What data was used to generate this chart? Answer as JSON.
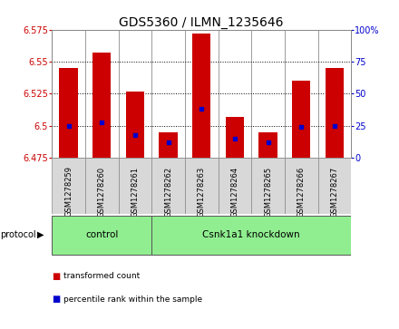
{
  "title": "GDS5360 / ILMN_1235646",
  "samples": [
    "GSM1278259",
    "GSM1278260",
    "GSM1278261",
    "GSM1278262",
    "GSM1278263",
    "GSM1278264",
    "GSM1278265",
    "GSM1278266",
    "GSM1278267"
  ],
  "transformed_counts": [
    6.545,
    6.557,
    6.527,
    6.495,
    6.572,
    6.507,
    6.495,
    6.535,
    6.545
  ],
  "percentile_ranks": [
    25,
    28,
    18,
    12,
    38,
    15,
    12,
    24,
    25
  ],
  "bar_bottom": 6.475,
  "ylim_left": [
    6.475,
    6.575
  ],
  "ylim_right": [
    0,
    100
  ],
  "yticks_left": [
    6.475,
    6.5,
    6.525,
    6.55,
    6.575
  ],
  "yticks_right": [
    0,
    25,
    50,
    75,
    100
  ],
  "bar_color": "#cc0000",
  "blue_color": "#0000cc",
  "bg_color": "#ffffff",
  "plot_bg_color": "#ffffff",
  "sample_bg_color": "#d8d8d8",
  "control_count": 3,
  "knockdown_count": 6,
  "protocol_color": "#90ee90",
  "protocol_groups": [
    {
      "label": "control"
    },
    {
      "label": "Csnk1a1 knockdown"
    }
  ],
  "legend_items": [
    {
      "label": "transformed count",
      "color": "#cc0000"
    },
    {
      "label": "percentile rank within the sample",
      "color": "#0000cc"
    }
  ],
  "title_fontsize": 10,
  "tick_fontsize": 7,
  "sample_fontsize": 6,
  "axis_label_color_left": "#cc0000",
  "axis_label_color_right": "#0000cc"
}
